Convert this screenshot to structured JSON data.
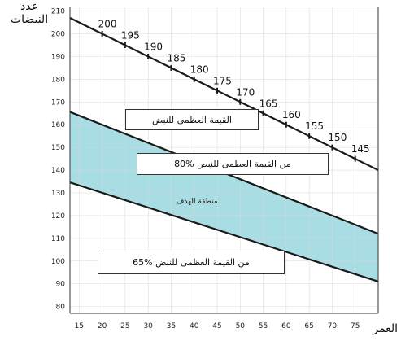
{
  "chart_data": {
    "type": "line",
    "xlabel": "العمر",
    "ylabel": "عدد النبضات",
    "xlim": [
      13,
      80
    ],
    "ylim": [
      77,
      212
    ],
    "x_ticks": [
      15,
      20,
      25,
      30,
      35,
      40,
      45,
      50,
      55,
      60,
      65,
      70,
      75
    ],
    "y_ticks": [
      80,
      90,
      100,
      110,
      120,
      130,
      140,
      150,
      160,
      170,
      180,
      190,
      200,
      210
    ],
    "series": [
      {
        "name": "القيمة العظمى للنبض",
        "x": [
          13,
          20,
          25,
          30,
          35,
          40,
          45,
          50,
          55,
          60,
          65,
          70,
          75,
          80
        ],
        "values": [
          207,
          200,
          195,
          190,
          185,
          180,
          175,
          170,
          165,
          160,
          155,
          150,
          145,
          140
        ],
        "point_labels": [
          "",
          "200",
          "195",
          "190",
          "185",
          "180",
          "175",
          "170",
          "165",
          "160",
          "155",
          "150",
          "145",
          ""
        ]
      },
      {
        "name": "80% من القيمة العظمى للنبض",
        "x": [
          13,
          80
        ],
        "values": [
          165.6,
          112
        ]
      },
      {
        "name": "65% من القيمة العظمى للنبض",
        "x": [
          13,
          80
        ],
        "values": [
          134.6,
          91
        ]
      }
    ],
    "shaded_region": {
      "label": "منطقة الهدف",
      "between": [
        1,
        2
      ],
      "color": "#a8dde3"
    },
    "colors": {
      "line": "#1a1a1a",
      "fill": "#a8dde3",
      "grid": "#ffffff"
    }
  }
}
